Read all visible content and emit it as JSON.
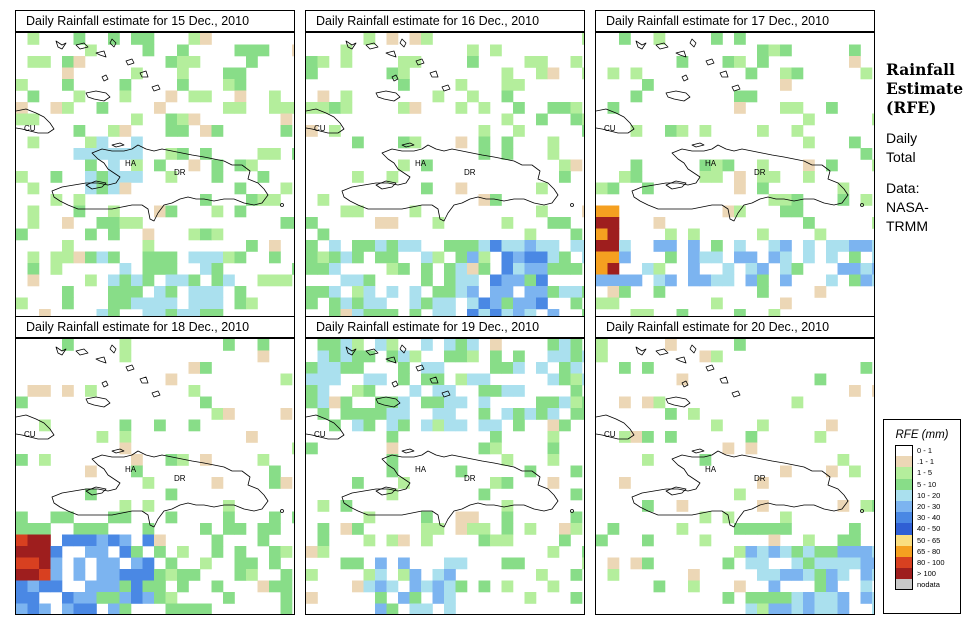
{
  "panels": [
    {
      "title": "Daily Rainfall estimate for  15 Dec., 2010"
    },
    {
      "title": "Daily Rainfall estimate for  16 Dec., 2010"
    },
    {
      "title": "Daily Rainfall estimate for  17 Dec., 2010"
    },
    {
      "title": "Daily Rainfall estimate for  18 Dec., 2010"
    },
    {
      "title": "Daily Rainfall estimate for  19 Dec., 2010"
    },
    {
      "title": "Daily Rainfall estimate for  20 Dec., 2010"
    }
  ],
  "map_labels": {
    "cuba": "CU",
    "haiti": "HA",
    "dominican_republic": "DR"
  },
  "sidebar": {
    "title_line1": "Rainfall",
    "title_line2": "Estimate",
    "title_line3": "(RFE)",
    "period_line1": "Daily",
    "period_line2": "Total",
    "source_line1": "Data:",
    "source_line2": "NASA-",
    "source_line3": "TRMM"
  },
  "legend": {
    "title": "RFE (mm)",
    "items": [
      {
        "label": "0 - 1",
        "color": "#ffffff"
      },
      {
        "label": ".1 - 1",
        "color": "#ecd7b6"
      },
      {
        "label": "1 - 5",
        "color": "#b4ee9c"
      },
      {
        "label": "5 - 10",
        "color": "#88dd88"
      },
      {
        "label": "10 - 20",
        "color": "#aae0ee"
      },
      {
        "label": "20 - 30",
        "color": "#7cb4f0"
      },
      {
        "label": "30 - 40",
        "color": "#4a88e4"
      },
      {
        "label": "40 - 50",
        "color": "#2f5fd4"
      },
      {
        "label": "50 - 65",
        "color": "#fade80"
      },
      {
        "label": "65 - 80",
        "color": "#f5a020"
      },
      {
        "label": "80 - 100",
        "color": "#d84020"
      },
      {
        "label": "> 100",
        "color": "#9e1e1e"
      },
      {
        "label": "nodata",
        "color": "#c8c8c8"
      }
    ]
  }
}
